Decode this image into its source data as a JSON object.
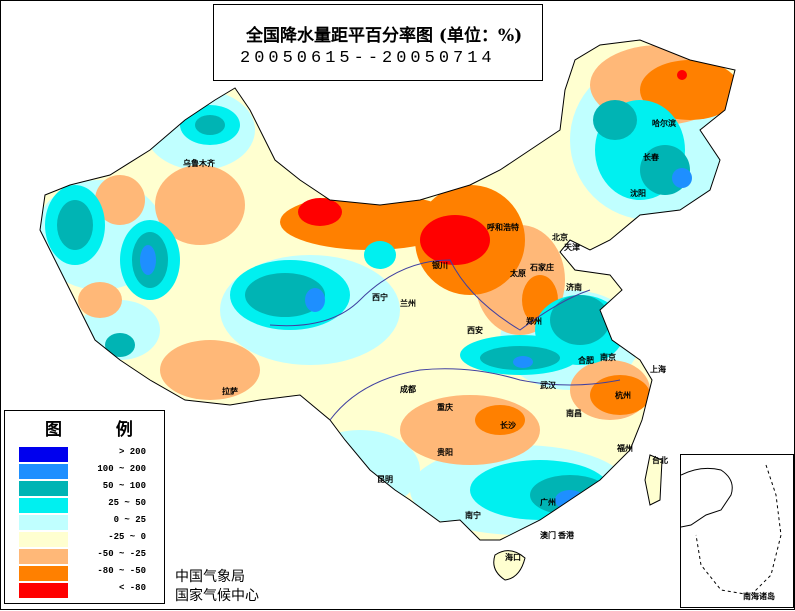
{
  "title": "全国降水量距平百分率图 (单位：%)",
  "date_range": "20050615--20050714",
  "legend": {
    "title": "图 例",
    "items": [
      {
        "label": "> 200",
        "color": "#0000ee"
      },
      {
        "label": "100 ~ 200",
        "color": "#1e8fff"
      },
      {
        "label": "50 ~ 100",
        "color": "#00b4b4"
      },
      {
        "label": "25 ~ 50",
        "color": "#00f0f0"
      },
      {
        "label": "0 ~ 25",
        "color": "#c0ffff"
      },
      {
        "label": "-25 ~ 0",
        "color": "#ffffd0"
      },
      {
        "label": "-50 ~ -25",
        "color": "#ffb878"
      },
      {
        "label": "-80 ~ -50",
        "color": "#ff8000"
      },
      {
        "label": "< -80",
        "color": "#ff0000"
      }
    ]
  },
  "agency": [
    "中国气象局",
    "国家气候中心"
  ],
  "inset_label": "南海诸岛",
  "cities": [
    "乌鲁木齐",
    "哈尔滨",
    "长春",
    "沈阳",
    "呼和浩特",
    "北京",
    "天津",
    "太原",
    "石家庄",
    "银川",
    "西宁",
    "兰州",
    "济南",
    "西安",
    "郑州",
    "合肥",
    "南京",
    "上海",
    "拉萨",
    "成都",
    "武汉",
    "杭州",
    "重庆",
    "长沙",
    "南昌",
    "福州",
    "贵阳",
    "昆明",
    "台北",
    "南宁",
    "广州",
    "海口",
    "澳门",
    "香港"
  ]
}
